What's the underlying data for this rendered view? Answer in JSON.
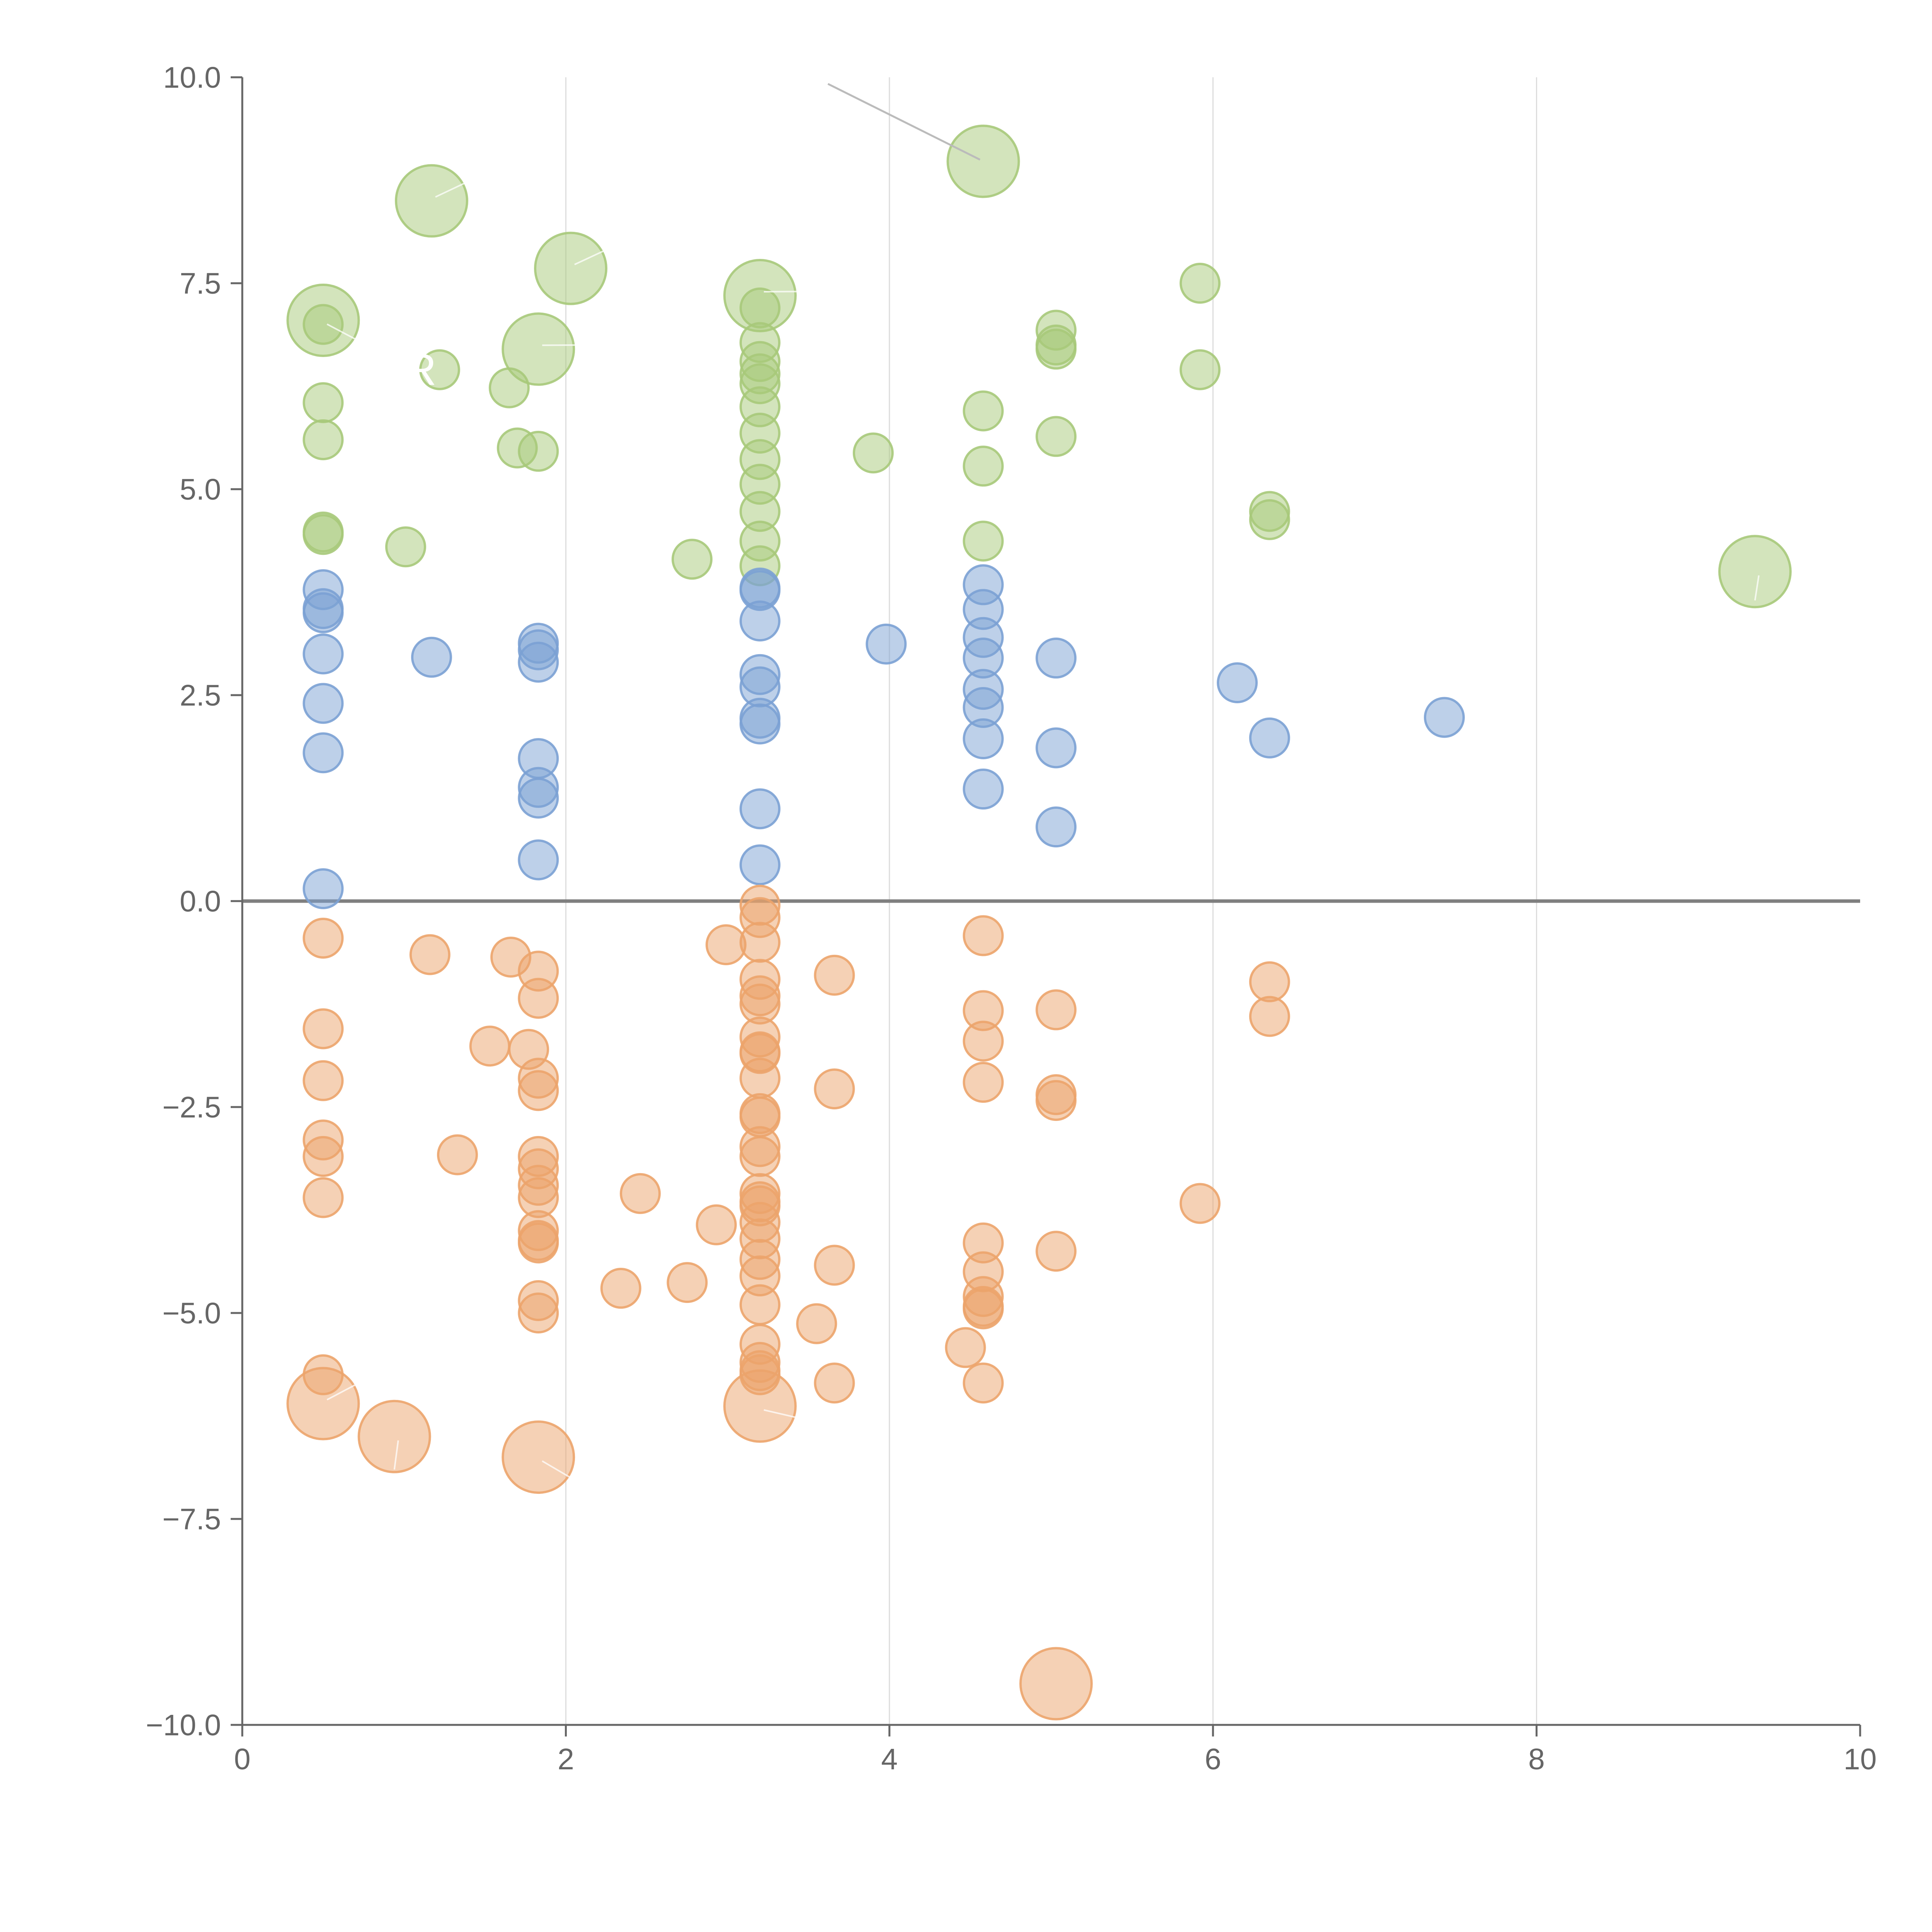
{
  "chart_data": {
    "type": "scatter",
    "title": "",
    "xlabel": "",
    "ylabel": "",
    "xlim": [
      0,
      10
    ],
    "ylim": [
      -10,
      10
    ],
    "x_ticks": [
      "0",
      "2",
      "4",
      "6",
      "8",
      "10"
    ],
    "y_ticks": [
      "10.0",
      "7.5",
      "5.0",
      "2.5",
      "0.0",
      "−2.5",
      "−5.0",
      "−7.5",
      "−10.0"
    ],
    "x_grid": [
      2,
      4,
      6,
      8
    ],
    "zero_line": 0,
    "stray_label": "R",
    "series": [
      {
        "name": "green",
        "color": "#a7c97a",
        "points": [
          [
            0.5,
            7.05,
            3
          ],
          [
            1.17,
            8.5,
            3
          ],
          [
            2.03,
            7.68,
            3
          ],
          [
            1.83,
            6.7,
            3
          ],
          [
            3.2,
            7.35,
            3
          ],
          [
            4.58,
            8.98,
            3
          ],
          [
            9.35,
            4.0,
            3
          ],
          [
            0.5,
            7.0,
            1
          ],
          [
            0.5,
            6.05,
            1
          ],
          [
            0.5,
            5.6,
            1
          ],
          [
            0.5,
            4.48,
            1
          ],
          [
            0.5,
            4.45,
            1
          ],
          [
            1.22,
            6.45,
            1
          ],
          [
            1.65,
            6.23,
            1
          ],
          [
            1.7,
            5.5,
            1
          ],
          [
            1.83,
            5.46,
            1
          ],
          [
            1.01,
            4.3,
            1
          ],
          [
            2.78,
            4.15,
            1
          ],
          [
            3.2,
            7.2,
            1
          ],
          [
            3.2,
            6.78,
            1
          ],
          [
            3.2,
            6.55,
            1
          ],
          [
            3.2,
            6.4,
            1
          ],
          [
            3.2,
            6.28,
            1
          ],
          [
            3.2,
            6.0,
            1
          ],
          [
            3.2,
            5.68,
            1
          ],
          [
            3.2,
            5.36,
            1
          ],
          [
            3.2,
            5.06,
            1
          ],
          [
            3.2,
            4.73,
            1
          ],
          [
            3.2,
            4.37,
            1
          ],
          [
            3.2,
            4.07,
            1
          ],
          [
            3.9,
            5.44,
            1
          ],
          [
            4.58,
            5.95,
            1
          ],
          [
            4.58,
            5.28,
            1
          ],
          [
            4.58,
            4.37,
            1
          ],
          [
            5.03,
            6.93,
            1
          ],
          [
            5.03,
            6.75,
            1
          ],
          [
            5.03,
            6.7,
            1
          ],
          [
            5.03,
            5.64,
            1
          ],
          [
            5.92,
            7.5,
            1
          ],
          [
            5.92,
            6.45,
            1
          ],
          [
            6.35,
            4.73,
            1
          ],
          [
            6.35,
            4.63,
            1
          ]
        ]
      },
      {
        "name": "blue",
        "color": "#7ba1d4",
        "points": [
          [
            0.5,
            3.78,
            1
          ],
          [
            0.5,
            3.55,
            1
          ],
          [
            0.5,
            3.5,
            1
          ],
          [
            0.5,
            3.0,
            1
          ],
          [
            0.5,
            2.4,
            1
          ],
          [
            0.5,
            1.8,
            1
          ],
          [
            0.5,
            0.15,
            1
          ],
          [
            1.17,
            2.96,
            1
          ],
          [
            1.83,
            3.13,
            1
          ],
          [
            1.83,
            3.05,
            1
          ],
          [
            1.83,
            2.9,
            1
          ],
          [
            1.83,
            1.73,
            1
          ],
          [
            1.83,
            1.38,
            1
          ],
          [
            1.83,
            1.25,
            1
          ],
          [
            1.83,
            0.5,
            1
          ],
          [
            3.2,
            3.8,
            1
          ],
          [
            3.2,
            3.77,
            1
          ],
          [
            3.2,
            3.4,
            1
          ],
          [
            3.2,
            2.75,
            1
          ],
          [
            3.2,
            2.6,
            1
          ],
          [
            3.2,
            2.22,
            1
          ],
          [
            3.2,
            2.15,
            1
          ],
          [
            3.2,
            1.12,
            1
          ],
          [
            3.2,
            0.44,
            1
          ],
          [
            3.98,
            3.12,
            1
          ],
          [
            4.58,
            3.84,
            1
          ],
          [
            4.58,
            3.54,
            1
          ],
          [
            4.58,
            3.2,
            1
          ],
          [
            4.58,
            2.95,
            1
          ],
          [
            4.58,
            2.57,
            1
          ],
          [
            4.58,
            2.35,
            1
          ],
          [
            4.58,
            1.97,
            1
          ],
          [
            4.58,
            1.36,
            1
          ],
          [
            5.03,
            2.95,
            1
          ],
          [
            5.03,
            1.86,
            1
          ],
          [
            5.03,
            0.9,
            1
          ],
          [
            6.15,
            2.65,
            1
          ],
          [
            6.35,
            1.98,
            1
          ],
          [
            7.43,
            2.23,
            1
          ]
        ]
      },
      {
        "name": "orange",
        "color": "#eca46c",
        "points": [
          [
            0.5,
            -6.1,
            3
          ],
          [
            0.94,
            -6.5,
            3
          ],
          [
            1.83,
            -6.75,
            3
          ],
          [
            3.2,
            -6.13,
            3
          ],
          [
            5.03,
            -9.5,
            3
          ],
          [
            0.5,
            -0.45,
            1
          ],
          [
            0.5,
            -1.55,
            1
          ],
          [
            0.5,
            -2.18,
            1
          ],
          [
            0.5,
            -2.9,
            1
          ],
          [
            0.5,
            -3.1,
            1
          ],
          [
            0.5,
            -3.6,
            1
          ],
          [
            0.5,
            -5.75,
            1
          ],
          [
            1.16,
            -0.65,
            1
          ],
          [
            1.33,
            -3.08,
            1
          ],
          [
            1.53,
            -1.76,
            1
          ],
          [
            1.66,
            -0.68,
            1
          ],
          [
            1.77,
            -1.8,
            1
          ],
          [
            1.83,
            -0.85,
            1
          ],
          [
            1.83,
            -1.18,
            1
          ],
          [
            1.83,
            -2.15,
            1
          ],
          [
            1.83,
            -2.3,
            1
          ],
          [
            1.83,
            -3.1,
            1
          ],
          [
            1.83,
            -3.25,
            1
          ],
          [
            1.83,
            -3.45,
            1
          ],
          [
            1.83,
            -3.6,
            1
          ],
          [
            1.83,
            -4.0,
            1
          ],
          [
            1.83,
            -4.12,
            1
          ],
          [
            1.83,
            -4.15,
            1
          ],
          [
            1.83,
            -4.85,
            1
          ],
          [
            1.83,
            -5.0,
            1
          ],
          [
            2.34,
            -4.7,
            1
          ],
          [
            2.46,
            -3.55,
            1
          ],
          [
            2.75,
            -4.63,
            1
          ],
          [
            2.93,
            -3.93,
            1
          ],
          [
            2.99,
            -0.53,
            1
          ],
          [
            3.2,
            -0.05,
            1
          ],
          [
            3.2,
            -0.2,
            1
          ],
          [
            3.2,
            -0.5,
            1
          ],
          [
            3.2,
            -0.95,
            1
          ],
          [
            3.2,
            -1.15,
            1
          ],
          [
            3.2,
            -1.25,
            1
          ],
          [
            3.2,
            -1.65,
            1
          ],
          [
            3.2,
            -1.83,
            1
          ],
          [
            3.2,
            -1.85,
            1
          ],
          [
            3.2,
            -2.15,
            1
          ],
          [
            3.2,
            -2.58,
            1
          ],
          [
            3.2,
            -2.62,
            1
          ],
          [
            3.2,
            -2.98,
            1
          ],
          [
            3.2,
            -3.1,
            1
          ],
          [
            3.2,
            -3.55,
            1
          ],
          [
            3.2,
            -3.65,
            1
          ],
          [
            3.2,
            -3.7,
            1
          ],
          [
            3.2,
            -3.9,
            1
          ],
          [
            3.2,
            -4.1,
            1
          ],
          [
            3.2,
            -4.35,
            1
          ],
          [
            3.2,
            -4.55,
            1
          ],
          [
            3.2,
            -4.9,
            1
          ],
          [
            3.2,
            -5.38,
            1
          ],
          [
            3.2,
            -5.6,
            1
          ],
          [
            3.2,
            -5.7,
            1
          ],
          [
            3.2,
            -5.75,
            1
          ],
          [
            3.55,
            -5.13,
            1
          ],
          [
            3.66,
            -0.9,
            1
          ],
          [
            3.66,
            -2.28,
            1
          ],
          [
            3.66,
            -4.42,
            1
          ],
          [
            3.66,
            -5.85,
            1
          ],
          [
            4.47,
            -5.42,
            1
          ],
          [
            4.58,
            -0.42,
            1
          ],
          [
            4.58,
            -1.33,
            1
          ],
          [
            4.58,
            -1.7,
            1
          ],
          [
            4.58,
            -2.2,
            1
          ],
          [
            4.58,
            -4.15,
            1
          ],
          [
            4.58,
            -4.5,
            1
          ],
          [
            4.58,
            -4.8,
            1
          ],
          [
            4.58,
            -4.92,
            1
          ],
          [
            4.58,
            -4.95,
            1
          ],
          [
            4.58,
            -5.85,
            1
          ],
          [
            5.03,
            -1.32,
            1
          ],
          [
            5.03,
            -2.35,
            1
          ],
          [
            5.03,
            -2.42,
            1
          ],
          [
            5.03,
            -4.25,
            1
          ],
          [
            5.92,
            -3.67,
            1
          ],
          [
            6.35,
            -0.98,
            1
          ],
          [
            6.35,
            -1.4,
            1
          ]
        ]
      }
    ]
  }
}
